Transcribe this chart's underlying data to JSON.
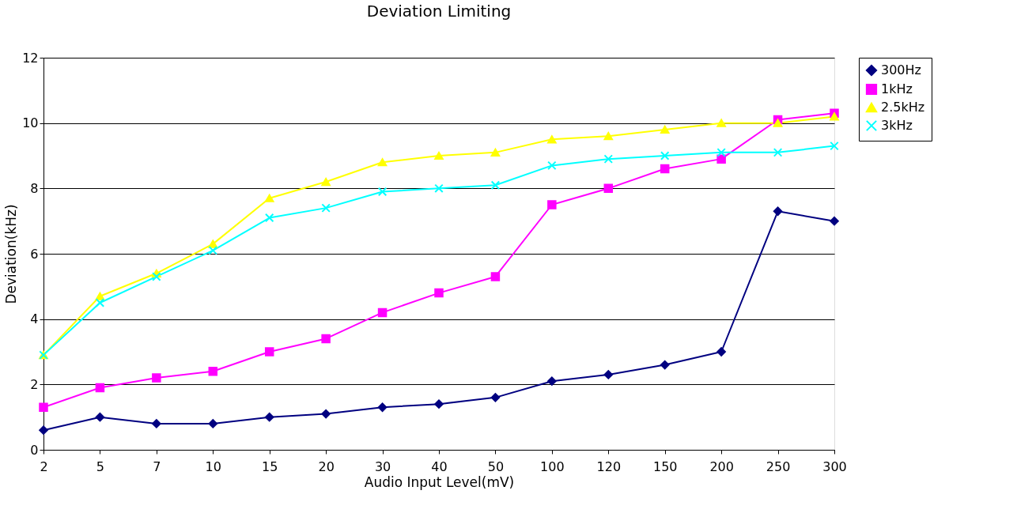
{
  "chart_data": {
    "type": "line",
    "title": "Deviation Limiting",
    "xlabel": "Audio Input Level(mV)",
    "ylabel": "Deviation(kHz)",
    "categories": [
      "2",
      "5",
      "7",
      "10",
      "15",
      "20",
      "30",
      "40",
      "50",
      "100",
      "120",
      "150",
      "200",
      "250",
      "300"
    ],
    "series": [
      {
        "name": "300Hz",
        "color": "#000080",
        "marker": "diamond",
        "values": [
          0.6,
          1.0,
          0.8,
          0.8,
          1.0,
          1.1,
          1.3,
          1.4,
          1.6,
          2.1,
          2.3,
          2.6,
          3.0,
          7.3,
          7.0
        ]
      },
      {
        "name": "1kHz",
        "color": "#ff00ff",
        "marker": "square",
        "values": [
          1.3,
          1.9,
          2.2,
          2.4,
          3.0,
          3.4,
          4.2,
          4.8,
          5.3,
          7.5,
          8.0,
          8.6,
          8.9,
          10.1,
          10.3
        ]
      },
      {
        "name": "2.5kHz",
        "color": "#ffff00",
        "marker": "triangle",
        "values": [
          2.9,
          4.7,
          5.4,
          6.3,
          7.7,
          8.2,
          8.8,
          9.0,
          9.1,
          9.5,
          9.6,
          9.8,
          10.0,
          10.0,
          10.2
        ]
      },
      {
        "name": "3kHz",
        "color": "#00ffff",
        "marker": "cross",
        "values": [
          2.9,
          4.5,
          5.3,
          6.1,
          7.1,
          7.4,
          7.9,
          8.0,
          8.1,
          8.7,
          8.9,
          9.0,
          9.1,
          9.1,
          9.3
        ]
      }
    ],
    "ylim": [
      0,
      12
    ],
    "yticks": [
      0,
      2,
      4,
      6,
      8,
      10,
      12
    ],
    "grid": "y",
    "legend": "right",
    "line_style": "solid"
  }
}
